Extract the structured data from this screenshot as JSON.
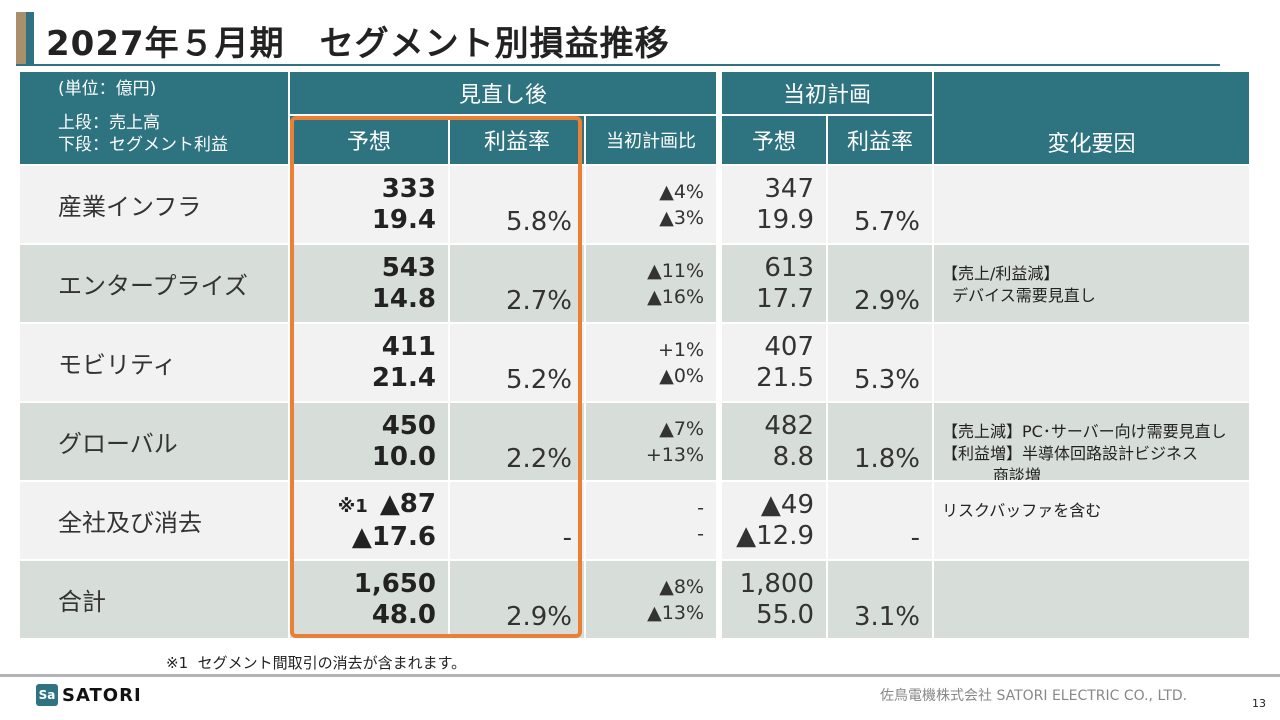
{
  "title": "2027年５月期　セグメント別損益推移",
  "table": {
    "unit_note": [
      "(単位：億円)",
      "上段：売上高",
      "下段：セグメント利益"
    ],
    "group_after": "見直し後",
    "group_initial": "当初計画",
    "col_forecast": "予想",
    "col_margin": "利益率",
    "col_vs_plan": "当初計画比",
    "col_forecast_initial": "予想",
    "col_margin_initial": "利益率",
    "col_reason": "変化要因",
    "rows": [
      {
        "name": "産業インフラ",
        "prefix": "",
        "sales": "333",
        "profit": "19.4",
        "margin": "5.8%",
        "vs_sales": "▲4%",
        "vs_profit": "▲3%",
        "init_sales": "347",
        "init_profit": "19.9",
        "init_margin": "5.7%",
        "reason": ""
      },
      {
        "name": "エンタープライズ",
        "prefix": "",
        "sales": "543",
        "profit": "14.8",
        "margin": "2.7%",
        "vs_sales": "▲11%",
        "vs_profit": "▲16%",
        "init_sales": "613",
        "init_profit": "17.7",
        "init_margin": "2.9%",
        "reason": "【売上/利益減】\n  デバイス需要見直し"
      },
      {
        "name": "モビリティ",
        "prefix": "",
        "sales": "411",
        "profit": "21.4",
        "margin": "5.2%",
        "vs_sales": "+1%",
        "vs_profit": "▲0%",
        "init_sales": "407",
        "init_profit": "21.5",
        "init_margin": "5.3%",
        "reason": ""
      },
      {
        "name": "グローバル",
        "prefix": "",
        "sales": "450",
        "profit": "10.0",
        "margin": "2.2%",
        "vs_sales": "▲7%",
        "vs_profit": "+13%",
        "init_sales": "482",
        "init_profit": "8.8",
        "init_margin": "1.8%",
        "reason": "【売上減】PC･サーバー向け需要見直し\n【利益増】半導体回路設計ビジネス\n          商談増"
      },
      {
        "name": "全社及び消去",
        "prefix": "※1",
        "sales": "▲87",
        "profit": "▲17.6",
        "margin": "-",
        "vs_sales": "-",
        "vs_profit": "-",
        "init_sales": "▲49",
        "init_profit": "▲12.9",
        "init_margin": "-",
        "reason": "リスクバッファを含む"
      },
      {
        "name": "合計",
        "prefix": "",
        "sales": "1,650",
        "profit": "48.0",
        "margin": "2.9%",
        "vs_sales": "▲8%",
        "vs_profit": "▲13%",
        "init_sales": "1,800",
        "init_profit": "55.0",
        "init_margin": "3.1%",
        "reason": ""
      }
    ]
  },
  "footnote": "※1  セグメント間取引の消去が含まれます。",
  "footer": {
    "logo_text": "SATORI",
    "logo_mark": "Sa",
    "company": "佐鳥電機株式会社  SATORI ELECTRIC CO., LTD.",
    "page": "13"
  },
  "colors": {
    "header": "#2e7380",
    "row_light": "#f2f2f2",
    "row_dark": "#d7ded9",
    "highlight": "#ea8035",
    "accent": "#a98f6b"
  }
}
